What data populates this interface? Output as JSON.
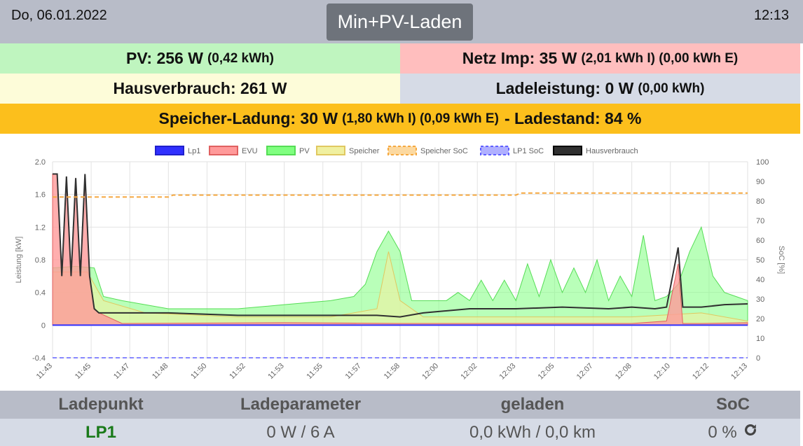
{
  "header": {
    "date": "Do, 06.01.2022",
    "time": "12:13",
    "mode": "Min+PV-Laden"
  },
  "summary": {
    "pv": {
      "label": "PV: 256 W",
      "detail": "(0,42 kWh)"
    },
    "netz": {
      "label": "Netz Imp: 35 W",
      "detail": "(2,01 kWh I) (0,00 kWh E)"
    },
    "haus": {
      "label": "Hausverbrauch: 261 W"
    },
    "lade": {
      "label": "Ladeleistung: 0 W",
      "detail": "(0,00 kWh)"
    },
    "speicher": {
      "label": "Speicher-Ladung: 30 W",
      "detail": "(1,80 kWh I) (0,09 kWh E)",
      "suffix": "- Ladestand: 84 %"
    }
  },
  "chart_data": {
    "type": "area",
    "xlabel": "",
    "ylabel": "Leistung [kW]",
    "y2label": "SoC [%]",
    "ylim": [
      -0.4,
      2.0
    ],
    "y2lim": [
      0,
      100
    ],
    "yticks": [
      "2.0",
      "1.6",
      "1.2",
      "0.8",
      "0.4",
      "0",
      "-0.4"
    ],
    "y2ticks": [
      "100",
      "90",
      "80",
      "70",
      "60",
      "50",
      "40",
      "30",
      "20",
      "10",
      "0"
    ],
    "xticks": [
      "11:43",
      "11:45",
      "11:47",
      "11:48",
      "11:50",
      "11:52",
      "11:53",
      "11:55",
      "11:57",
      "11:58",
      "12:00",
      "12:02",
      "12:03",
      "12:05",
      "12:07",
      "12:08",
      "12:10",
      "12:12",
      "12:13"
    ],
    "legend_position": "top",
    "grid": true,
    "colors": {
      "lp1": "#3030ff",
      "evu": "#ff9a9a",
      "pv": "#80ff80",
      "speicher": "#f0f0a0",
      "speicher_soc": "#f5a840",
      "lp1_soc": "#6060ff",
      "haus": "#303030"
    },
    "series": [
      {
        "name": "Lp1",
        "x": [
          0,
          30
        ],
        "values": [
          0,
          0
        ]
      },
      {
        "name": "EVU",
        "x": [
          0,
          0.2,
          0.4,
          0.6,
          0.8,
          1.0,
          1.2,
          1.4,
          1.6,
          1.8,
          2.0,
          3.0,
          10,
          15,
          20,
          25,
          26.5,
          27.0,
          27.2,
          28,
          30
        ],
        "values": [
          1.85,
          1.85,
          0.6,
          1.82,
          0.6,
          1.8,
          0.6,
          1.85,
          0.6,
          0.2,
          0.15,
          0.02,
          0.03,
          0.02,
          0.02,
          0.02,
          0.05,
          0.75,
          0.02,
          0.02,
          0.03
        ]
      },
      {
        "name": "PV",
        "x": [
          0,
          1,
          1.8,
          2.2,
          3,
          5,
          8,
          10,
          12,
          13,
          13.5,
          14,
          14.5,
          15,
          15.5,
          16,
          17,
          17.5,
          18,
          18.5,
          19,
          19.5,
          20,
          20.5,
          21,
          21.5,
          22,
          22.5,
          23,
          23.5,
          24,
          24.5,
          25,
          25.5,
          26,
          26.5,
          27,
          27.5,
          28,
          28.5,
          29,
          29.5,
          30
        ],
        "values": [
          0.7,
          0.72,
          0.7,
          0.35,
          0.3,
          0.2,
          0.2,
          0.25,
          0.3,
          0.35,
          0.5,
          0.9,
          1.15,
          0.9,
          0.3,
          0.3,
          0.3,
          0.4,
          0.3,
          0.55,
          0.3,
          0.55,
          0.3,
          0.75,
          0.35,
          0.8,
          0.4,
          0.7,
          0.4,
          0.8,
          0.3,
          0.6,
          0.35,
          1.1,
          0.3,
          0.35,
          0.5,
          0.9,
          1.2,
          0.6,
          0.4,
          0.35,
          0.3
        ]
      },
      {
        "name": "Speicher",
        "x": [
          0,
          1.5,
          2.2,
          4,
          8,
          12,
          14,
          14.5,
          15,
          16,
          20,
          25,
          28,
          30
        ],
        "values": [
          0.65,
          0.65,
          0.3,
          0.15,
          0.1,
          0.1,
          0.2,
          0.9,
          0.3,
          0.1,
          0.1,
          0.1,
          0.15,
          0.05
        ]
      },
      {
        "name": "Speicher SoC",
        "x": [
          0,
          5,
          5.2,
          20,
          20.2,
          30
        ],
        "values": [
          82,
          82,
          83,
          83,
          84,
          84
        ]
      },
      {
        "name": "LP1 SoC",
        "x": [
          0,
          30
        ],
        "values": [
          0,
          0
        ]
      },
      {
        "name": "Hausverbrauch",
        "x": [
          0,
          0.2,
          0.4,
          0.6,
          0.8,
          1.0,
          1.2,
          1.4,
          1.6,
          1.8,
          2.0,
          3.0,
          5,
          8,
          10,
          12,
          14,
          15,
          16,
          18,
          20,
          22,
          24,
          25,
          26,
          26.5,
          27.0,
          27.2,
          28,
          29,
          30
        ],
        "values": [
          1.85,
          1.85,
          0.6,
          1.82,
          0.6,
          1.8,
          0.6,
          1.85,
          0.6,
          0.2,
          0.15,
          0.15,
          0.15,
          0.12,
          0.12,
          0.12,
          0.12,
          0.1,
          0.15,
          0.2,
          0.2,
          0.22,
          0.2,
          0.22,
          0.2,
          0.22,
          0.95,
          0.22,
          0.22,
          0.25,
          0.26
        ]
      }
    ]
  },
  "table": {
    "headers": [
      "Ladepunkt",
      "Ladeparameter",
      "geladen",
      "SoC"
    ],
    "rows": [
      {
        "ladepunkt": "LP1",
        "parameter": "0 W / 6 A",
        "geladen": "0,0 kWh / 0,0 km",
        "soc": "0 %"
      }
    ]
  },
  "icons": {
    "refresh": "refresh-icon"
  }
}
